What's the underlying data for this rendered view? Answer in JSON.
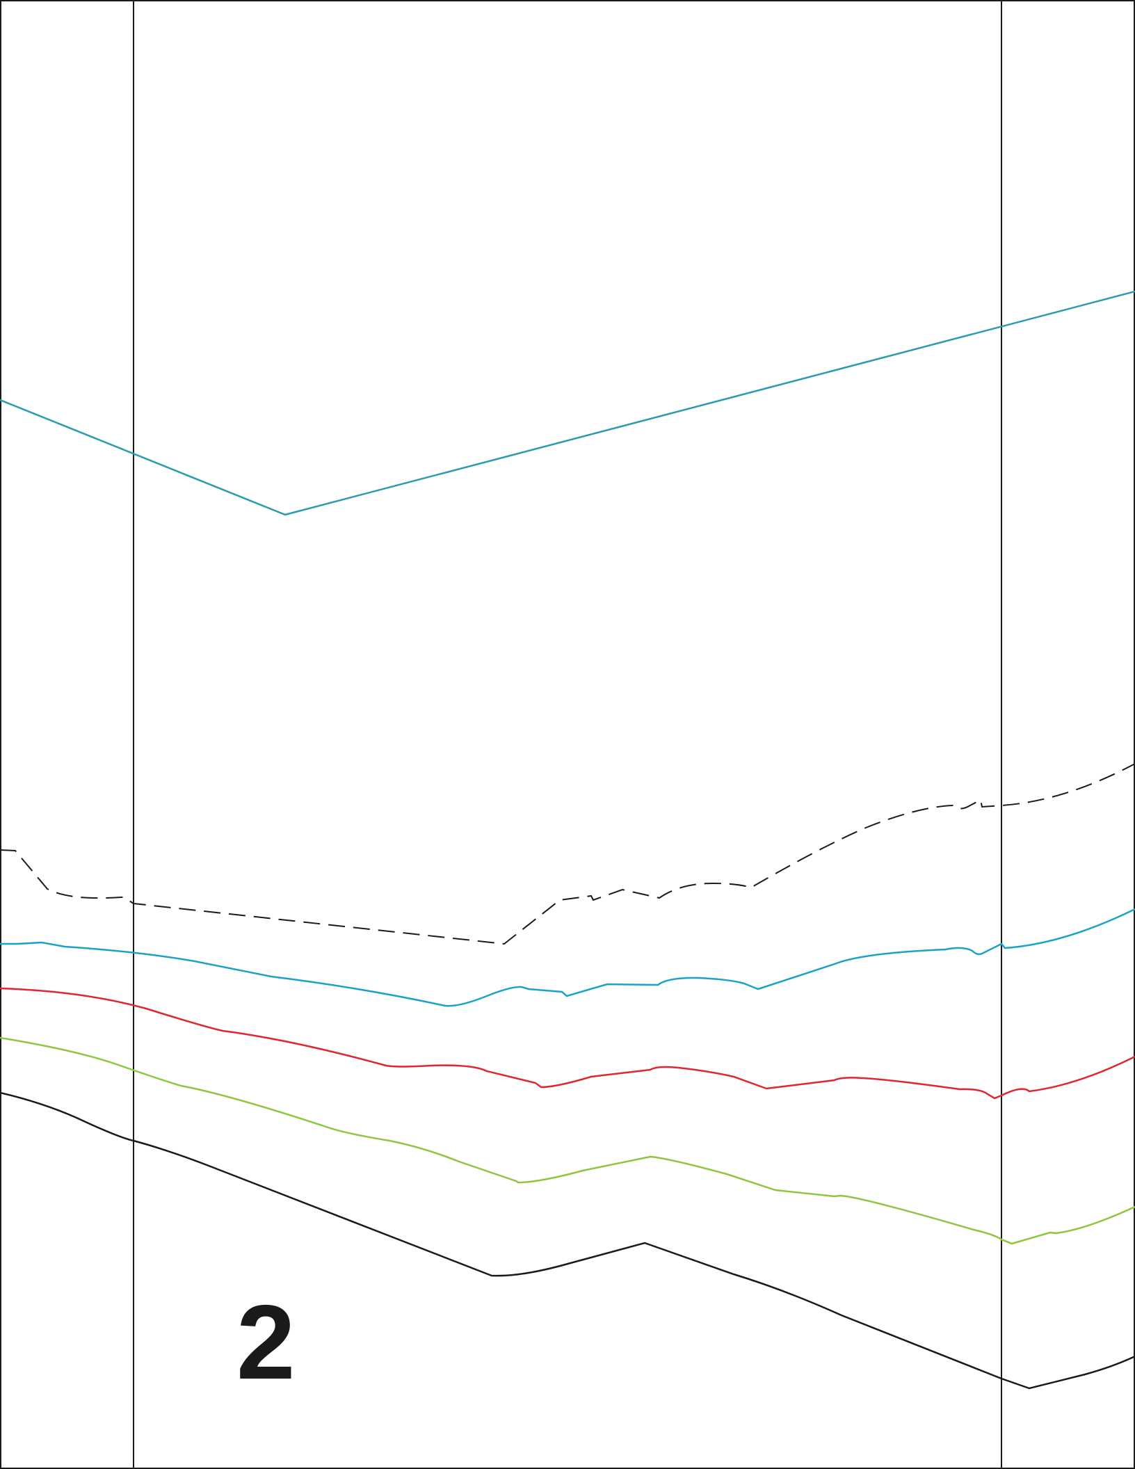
{
  "page_number": "2",
  "colors": {
    "frame": "#1a1a1a",
    "teal_line": "#2a9bb0",
    "blue_line": "#1aa3c6",
    "red_line": "#e0262f",
    "green_line": "#8dc63f",
    "black_line": "#1a1a1a",
    "dashed_line": "#1a1a1a"
  },
  "lines": [
    {
      "id": "teal-line",
      "style": "solid"
    },
    {
      "id": "dashed-line",
      "style": "dashed"
    },
    {
      "id": "blue-line",
      "style": "solid"
    },
    {
      "id": "red-line",
      "style": "solid"
    },
    {
      "id": "green-line",
      "style": "solid"
    },
    {
      "id": "black-line",
      "style": "solid"
    }
  ]
}
